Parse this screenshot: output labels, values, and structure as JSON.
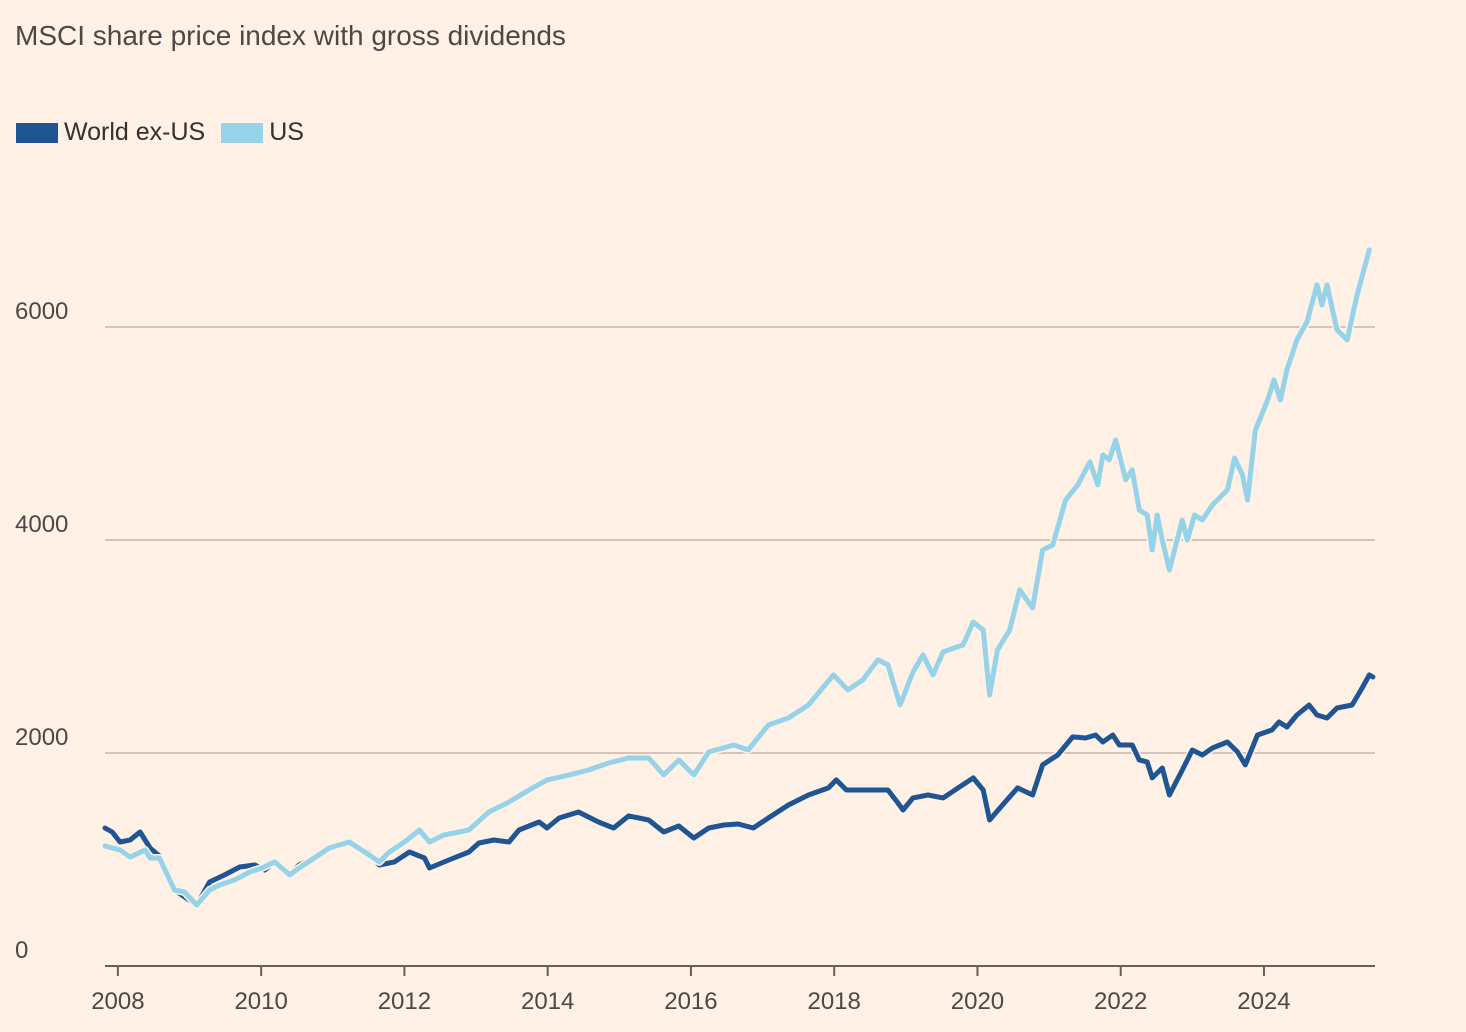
{
  "chart_data": {
    "type": "line",
    "title": "MSCI share price index with gross dividends",
    "xlabel": "",
    "ylabel": "",
    "xlim": [
      2007.82,
      2025.55
    ],
    "ylim": [
      0,
      7000
    ],
    "grid": true,
    "legend_placement": "top-left",
    "yticks": [
      0,
      2000,
      4000,
      6000
    ],
    "ytick_labels": [
      "0",
      "2000",
      "4000",
      "6000"
    ],
    "xticks": [
      2008,
      2010,
      2012,
      2014,
      2016,
      2018,
      2020,
      2022,
      2024
    ],
    "xtick_labels": [
      "2008",
      "2010",
      "2012",
      "2014",
      "2016",
      "2018",
      "2020",
      "2022",
      "2024"
    ],
    "series": [
      {
        "name": "World ex-US",
        "color": "#1f5592",
        "x": [
          2007.82,
          2007.92,
          2008.03,
          2008.17,
          2008.31,
          2008.45,
          2008.58,
          2008.79,
          2009.1,
          2009.28,
          2009.49,
          2009.7,
          2009.91,
          2010.05,
          2010.19,
          2010.4,
          2010.53,
          2010.74,
          2010.95,
          2011.23,
          2011.51,
          2011.65,
          2011.86,
          2012.07,
          2012.28,
          2012.35,
          2012.62,
          2012.9,
          2013.04,
          2013.25,
          2013.46,
          2013.6,
          2013.88,
          2013.99,
          2014.16,
          2014.43,
          2014.71,
          2014.92,
          2015.13,
          2015.41,
          2015.62,
          2015.83,
          2016.04,
          2016.25,
          2016.46,
          2016.66,
          2016.87,
          2017.08,
          2017.36,
          2017.64,
          2017.92,
          2018.03,
          2018.17,
          2018.47,
          2018.75,
          2018.89,
          2018.96,
          2019.1,
          2019.31,
          2019.52,
          2019.73,
          2019.94,
          2020.08,
          2020.17,
          2020.35,
          2020.56,
          2020.77,
          2020.91,
          2021.12,
          2021.33,
          2021.51,
          2021.65,
          2021.75,
          2021.89,
          2021.98,
          2022.16,
          2022.26,
          2022.37,
          2022.44,
          2022.58,
          2022.68,
          2022.86,
          2023.0,
          2023.14,
          2023.28,
          2023.49,
          2023.63,
          2023.74,
          2023.91,
          2024.11,
          2024.21,
          2024.32,
          2024.46,
          2024.63,
          2024.74,
          2024.88,
          2025.02,
          2025.23,
          2025.37,
          2025.47,
          2025.52
        ],
        "values": [
          1296,
          1258,
          1164,
          1183,
          1258,
          1108,
          1033,
          714,
          573,
          789,
          855,
          930,
          948,
          901,
          977,
          855,
          948,
          1014,
          1108,
          1164,
          1061,
          948,
          977,
          1070,
          1014,
          920,
          995,
          1070,
          1155,
          1183,
          1164,
          1277,
          1352,
          1296,
          1390,
          1446,
          1352,
          1296,
          1409,
          1371,
          1258,
          1315,
          1202,
          1296,
          1324,
          1333,
          1296,
          1390,
          1512,
          1606,
          1672,
          1747,
          1653,
          1653,
          1653,
          1531,
          1465,
          1578,
          1606,
          1578,
          1672,
          1766,
          1653,
          1371,
          1512,
          1672,
          1606,
          1888,
          1981,
          2151,
          2141,
          2169,
          2103,
          2169,
          2075,
          2075,
          1934,
          1916,
          1766,
          1859,
          1606,
          1840,
          2028,
          1981,
          2047,
          2103,
          2010,
          1888,
          2169,
          2216,
          2291,
          2244,
          2357,
          2451,
          2357,
          2329,
          2423,
          2451,
          2610,
          2733,
          2714
        ]
      },
      {
        "name": "US",
        "color": "#96d3e8",
        "x": [
          2007.82,
          2008.03,
          2008.17,
          2008.38,
          2008.45,
          2008.58,
          2008.79,
          2008.93,
          2009.1,
          2009.28,
          2009.42,
          2009.63,
          2009.84,
          2010.01,
          2010.19,
          2010.4,
          2010.53,
          2010.74,
          2010.95,
          2011.23,
          2011.51,
          2011.65,
          2011.79,
          2012.0,
          2012.21,
          2012.35,
          2012.55,
          2012.9,
          2013.18,
          2013.46,
          2013.74,
          2013.99,
          2014.3,
          2014.57,
          2014.85,
          2015.13,
          2015.41,
          2015.62,
          2015.83,
          2016.04,
          2016.25,
          2016.6,
          2016.8,
          2017.08,
          2017.36,
          2017.64,
          2017.99,
          2018.19,
          2018.4,
          2018.61,
          2018.75,
          2018.92,
          2019.1,
          2019.24,
          2019.38,
          2019.52,
          2019.8,
          2019.94,
          2020.08,
          2020.17,
          2020.28,
          2020.45,
          2020.59,
          2020.77,
          2020.91,
          2021.05,
          2021.23,
          2021.4,
          2021.57,
          2021.68,
          2021.75,
          2021.84,
          2021.93,
          2022.07,
          2022.16,
          2022.26,
          2022.37,
          2022.44,
          2022.51,
          2022.58,
          2022.68,
          2022.86,
          2022.93,
          2023.03,
          2023.14,
          2023.28,
          2023.49,
          2023.59,
          2023.7,
          2023.77,
          2023.88,
          2024.05,
          2024.14,
          2024.23,
          2024.32,
          2024.46,
          2024.6,
          2024.74,
          2024.81,
          2024.88,
          2025.02,
          2025.16,
          2025.3,
          2025.47
        ],
        "values": [
          1127,
          1090,
          1023,
          1089,
          1014,
          1014,
          714,
          695,
          573,
          714,
          761,
          808,
          883,
          920,
          977,
          855,
          920,
          1014,
          1108,
          1164,
          1042,
          977,
          1070,
          1164,
          1277,
          1164,
          1230,
          1277,
          1446,
          1540,
          1653,
          1747,
          1794,
          1840,
          1906,
          1953,
          1953,
          1794,
          1934,
          1794,
          2010,
          2075,
          2028,
          2263,
          2329,
          2451,
          2733,
          2592,
          2686,
          2874,
          2827,
          2451,
          2761,
          2921,
          2733,
          2949,
          3015,
          3230,
          3155,
          2545,
          2968,
          3155,
          3531,
          3362,
          3906,
          3953,
          4376,
          4517,
          4733,
          4517,
          4799,
          4752,
          4939,
          4564,
          4658,
          4282,
          4235,
          3906,
          4235,
          4000,
          3718,
          4188,
          4000,
          4235,
          4188,
          4329,
          4470,
          4770,
          4611,
          4376,
          5033,
          5315,
          5503,
          5315,
          5597,
          5879,
          6048,
          6395,
          6207,
          6395,
          5973,
          5879,
          6301,
          6724
        ]
      }
    ]
  }
}
